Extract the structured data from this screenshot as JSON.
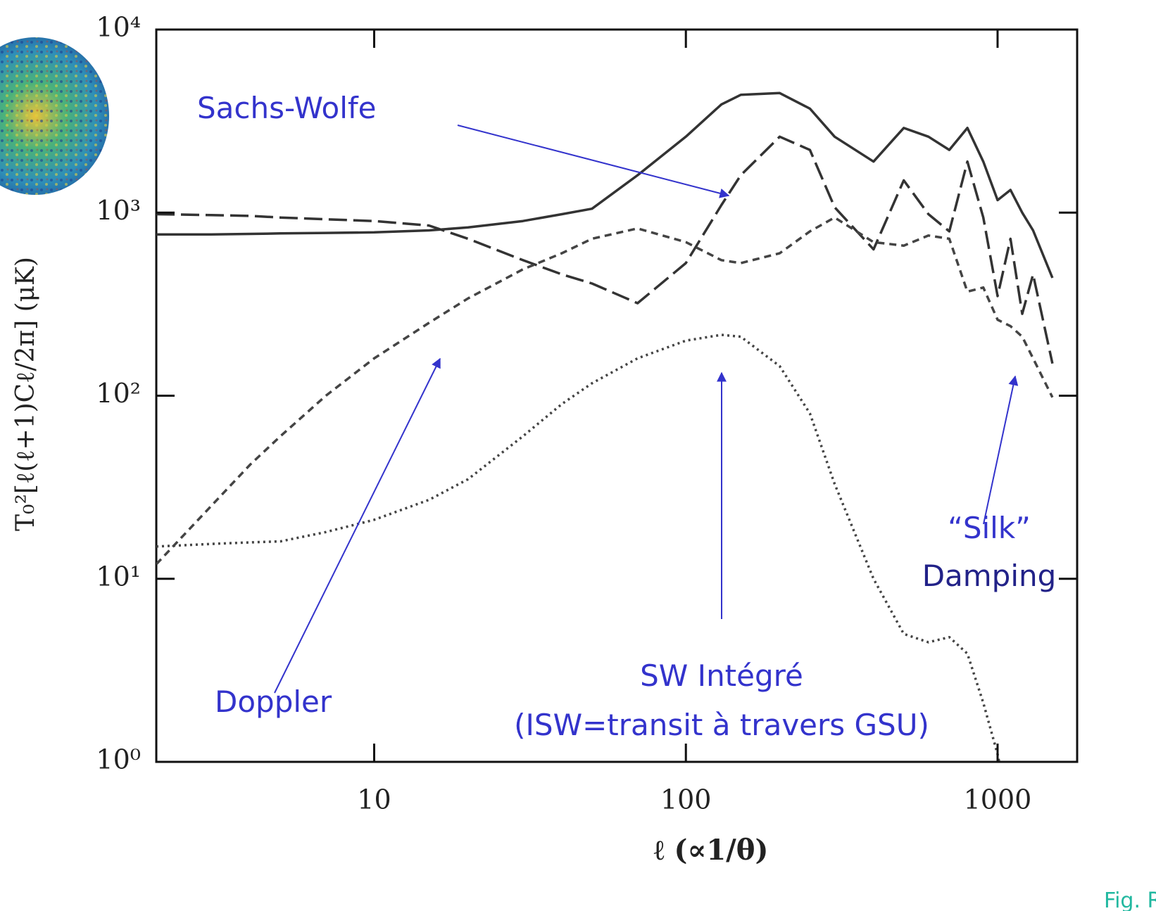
{
  "chart_data": {
    "type": "line",
    "x_label": "ℓ  (∝1/θ)",
    "y_label": "T₀²[ℓ(ℓ+1)Cℓ/2π]   (μK)",
    "log_x": true,
    "log_y": true,
    "xlim": [
      2,
      1800
    ],
    "ylim": [
      1,
      10000
    ],
    "xticks": [
      10,
      100,
      1000
    ],
    "yticks": [
      {
        "value": 1,
        "label": "10⁰"
      },
      {
        "value": 10,
        "label": "10¹"
      },
      {
        "value": 100,
        "label": "10²"
      },
      {
        "value": 1000,
        "label": "10³"
      },
      {
        "value": 10000,
        "label": "10⁴"
      }
    ],
    "x": [
      2,
      3,
      4,
      5,
      7,
      10,
      15,
      20,
      30,
      40,
      50,
      70,
      100,
      130,
      150,
      200,
      250,
      300,
      400,
      500,
      600,
      700,
      800,
      900,
      1000,
      1100,
      1200,
      1300,
      1500
    ],
    "series": [
      {
        "color": "#333333",
        "dash": "solid",
        "values": [
          760,
          760,
          765,
          770,
          775,
          780,
          800,
          830,
          900,
          980,
          1050,
          1600,
          2600,
          3900,
          4400,
          4500,
          3700,
          2600,
          1900,
          2900,
          2600,
          2200,
          2900,
          1900,
          1170,
          1330,
          1000,
          800,
          440
        ]
      },
      {
        "color": "#333333",
        "dash": "long-dash",
        "values": [
          980,
          970,
          960,
          940,
          920,
          900,
          850,
          720,
          550,
          460,
          410,
          320,
          530,
          1100,
          1600,
          2600,
          2200,
          1070,
          630,
          1500,
          980,
          790,
          1900,
          940,
          350,
          720,
          280,
          460,
          150
        ]
      },
      {
        "color": "#444444",
        "dash": "dash",
        "values": [
          12,
          25,
          42,
          60,
          100,
          160,
          250,
          340,
          490,
          600,
          720,
          820,
          690,
          550,
          530,
          600,
          790,
          940,
          690,
          660,
          750,
          720,
          370,
          390,
          260,
          240,
          210,
          160,
          98
        ]
      },
      {
        "color": "#444444",
        "dash": "dot",
        "values": [
          15,
          15.5,
          15.8,
          16,
          18,
          21,
          27,
          35,
          60,
          90,
          117,
          160,
          200,
          215,
          210,
          145,
          80,
          33,
          10,
          5,
          4.5,
          4.8,
          3.9,
          2.1,
          1.1,
          0.5,
          null,
          null,
          null
        ]
      }
    ],
    "annotations": [
      "Sachs-Wolfe",
      "Doppler",
      "SW Intégré",
      "(ISW=transit à travers GSU)",
      "“Silk”",
      "Damping",
      "Fig. Riazuelo"
    ]
  }
}
